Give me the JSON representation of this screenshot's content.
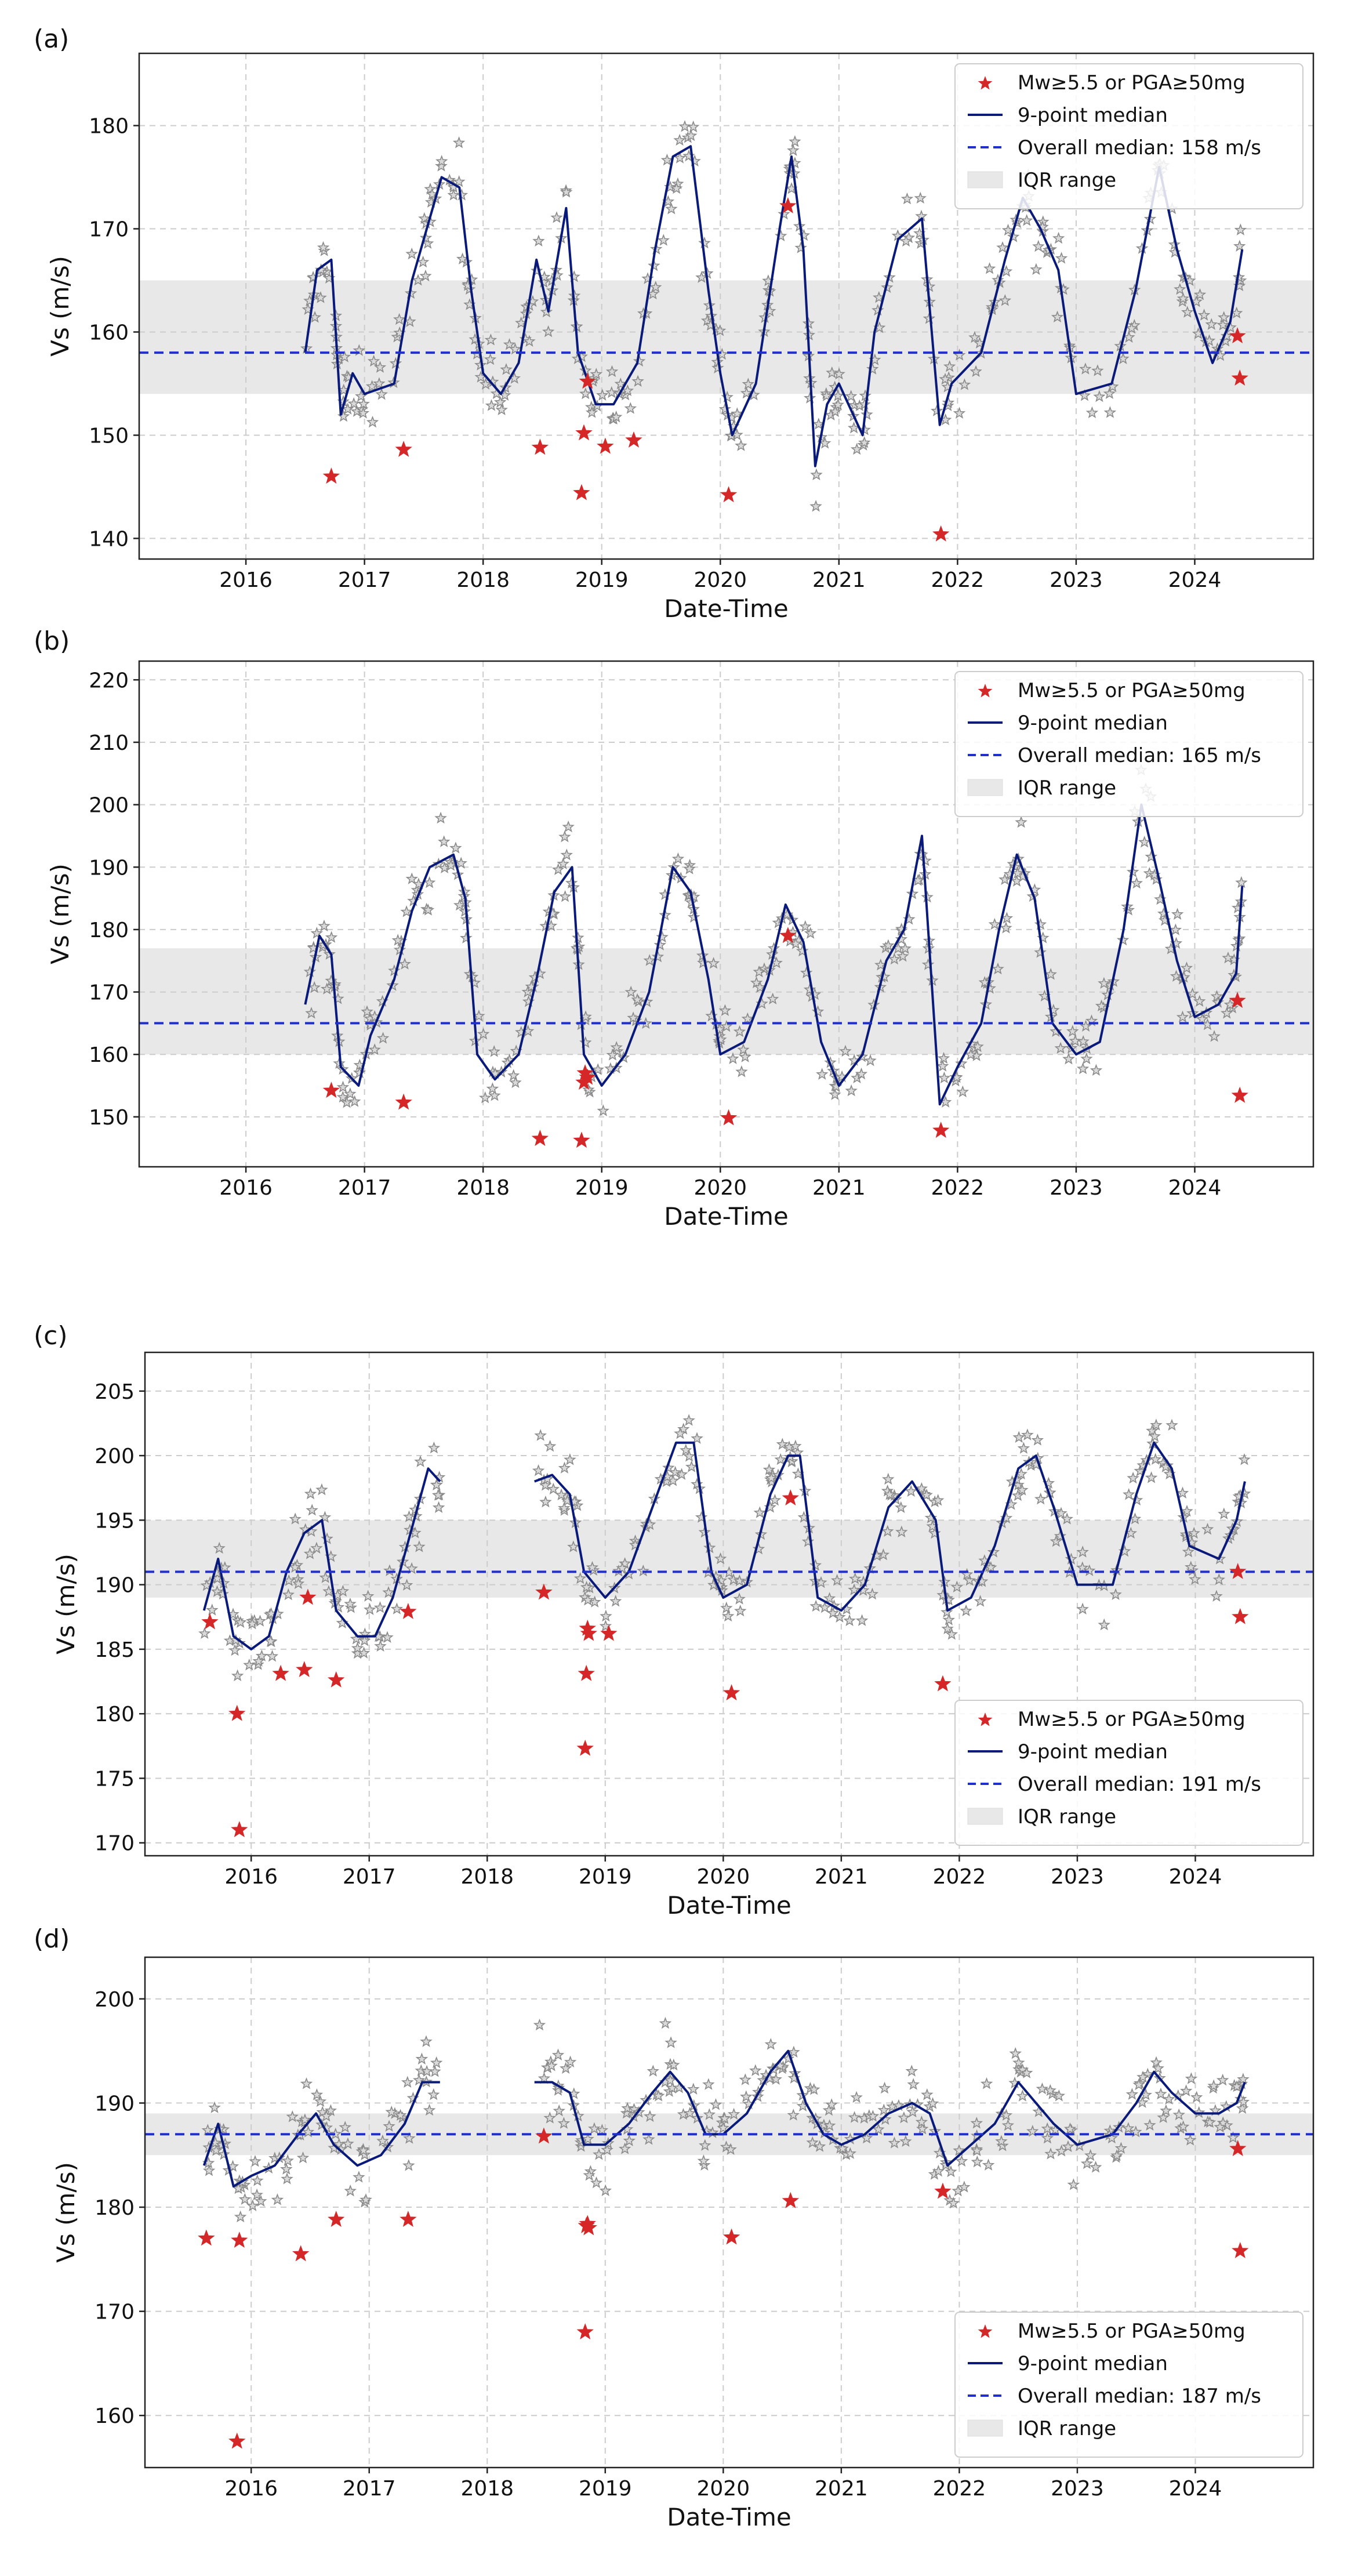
{
  "figure": {
    "description_note": "",
    "panels_count": 4
  },
  "chart_data": [
    {
      "panel_label": "(a)",
      "type": "scatter",
      "title": "",
      "xlabel": "Date-Time",
      "ylabel": "Vs (m/s)",
      "xlim": [
        2015.1,
        2025.0
      ],
      "ylim": [
        138,
        187
      ],
      "xticks": [
        2016,
        2017,
        2018,
        2019,
        2020,
        2021,
        2022,
        2023,
        2024
      ],
      "xtick_labels": [
        "2016",
        "2017",
        "2018",
        "2019",
        "2020",
        "2021",
        "2022",
        "2023",
        "2024"
      ],
      "yticks": [
        140,
        150,
        160,
        170,
        180
      ],
      "ytick_labels": [
        "140",
        "150",
        "160",
        "170",
        "180"
      ],
      "overall_median": 158,
      "iqr": [
        154,
        165
      ],
      "legend": {
        "position": "top-right",
        "entries": [
          "Mw≥5.5 or PGA≥50mg",
          "9-point median",
          "Overall median: 158 m/s",
          "IQR range"
        ]
      },
      "colors": {
        "event": "#d62728",
        "median": "#0a1a7a",
        "overall": "#1f2fd0",
        "iqr": "#e8e8e8",
        "obs": "#8a8a8a"
      },
      "median_series": [
        [
          2016.5,
          158
        ],
        [
          2016.6,
          166
        ],
        [
          2016.72,
          167
        ],
        [
          2016.8,
          152
        ],
        [
          2016.9,
          156
        ],
        [
          2017.0,
          154
        ],
        [
          2017.25,
          155
        ],
        [
          2017.4,
          165
        ],
        [
          2017.55,
          171
        ],
        [
          2017.65,
          175
        ],
        [
          2017.8,
          174
        ],
        [
          2017.9,
          164
        ],
        [
          2018.0,
          156
        ],
        [
          2018.15,
          154
        ],
        [
          2018.3,
          157
        ],
        [
          2018.45,
          167
        ],
        [
          2018.55,
          162
        ],
        [
          2018.7,
          172
        ],
        [
          2018.8,
          158
        ],
        [
          2018.95,
          153
        ],
        [
          2019.1,
          153
        ],
        [
          2019.3,
          157
        ],
        [
          2019.45,
          168
        ],
        [
          2019.6,
          177
        ],
        [
          2019.75,
          178
        ],
        [
          2019.9,
          164
        ],
        [
          2020.0,
          156
        ],
        [
          2020.1,
          150
        ],
        [
          2020.3,
          155
        ],
        [
          2020.5,
          170
        ],
        [
          2020.6,
          177
        ],
        [
          2020.7,
          168
        ],
        [
          2020.8,
          147
        ],
        [
          2020.9,
          153
        ],
        [
          2021.0,
          155
        ],
        [
          2021.2,
          150
        ],
        [
          2021.3,
          160
        ],
        [
          2021.5,
          169
        ],
        [
          2021.7,
          171
        ],
        [
          2021.85,
          151
        ],
        [
          2021.95,
          155
        ],
        [
          2022.2,
          158
        ],
        [
          2022.4,
          167
        ],
        [
          2022.55,
          173
        ],
        [
          2022.7,
          170
        ],
        [
          2022.85,
          166
        ],
        [
          2023.0,
          154
        ],
        [
          2023.3,
          155
        ],
        [
          2023.5,
          164
        ],
        [
          2023.7,
          176
        ],
        [
          2023.85,
          168
        ],
        [
          2024.0,
          162
        ],
        [
          2024.15,
          157
        ],
        [
          2024.3,
          161
        ],
        [
          2024.4,
          168
        ]
      ],
      "events": [
        [
          2016.72,
          146
        ],
        [
          2017.33,
          148.6
        ],
        [
          2018.48,
          148.8
        ],
        [
          2018.83,
          144.4
        ],
        [
          2018.85,
          150.2
        ],
        [
          2018.88,
          155.2
        ],
        [
          2019.03,
          148.9
        ],
        [
          2019.27,
          149.5
        ],
        [
          2020.07,
          144.2
        ],
        [
          2020.57,
          172.2
        ],
        [
          2021.86,
          140.4
        ],
        [
          2024.36,
          159.6
        ],
        [
          2024.38,
          155.5
        ]
      ]
    },
    {
      "panel_label": "(b)",
      "type": "scatter",
      "title": "",
      "xlabel": "Date-Time",
      "ylabel": "Vs (m/s)",
      "xlim": [
        2015.1,
        2025.0
      ],
      "ylim": [
        142,
        223
      ],
      "xticks": [
        2016,
        2017,
        2018,
        2019,
        2020,
        2021,
        2022,
        2023,
        2024
      ],
      "xtick_labels": [
        "2016",
        "2017",
        "2018",
        "2019",
        "2020",
        "2021",
        "2022",
        "2023",
        "2024"
      ],
      "yticks": [
        150,
        160,
        170,
        180,
        190,
        200,
        210,
        220
      ],
      "ytick_labels": [
        "150",
        "160",
        "170",
        "180",
        "190",
        "200",
        "210",
        "220"
      ],
      "overall_median": 165,
      "iqr": [
        160,
        177
      ],
      "legend": {
        "position": "top-right",
        "entries": [
          "Mw≥5.5 or PGA≥50mg",
          "9-point median",
          "Overall median: 165 m/s",
          "IQR range"
        ]
      },
      "colors": {
        "event": "#d62728",
        "median": "#0a1a7a",
        "overall": "#1f2fd0",
        "iqr": "#e8e8e8",
        "obs": "#8a8a8a"
      },
      "median_series": [
        [
          2016.5,
          168
        ],
        [
          2016.62,
          179
        ],
        [
          2016.72,
          176
        ],
        [
          2016.8,
          158
        ],
        [
          2016.95,
          155
        ],
        [
          2017.05,
          163
        ],
        [
          2017.25,
          172
        ],
        [
          2017.4,
          183
        ],
        [
          2017.55,
          190
        ],
        [
          2017.75,
          192
        ],
        [
          2017.85,
          185
        ],
        [
          2017.95,
          160
        ],
        [
          2018.1,
          156
        ],
        [
          2018.3,
          160
        ],
        [
          2018.45,
          172
        ],
        [
          2018.6,
          186
        ],
        [
          2018.75,
          190
        ],
        [
          2018.85,
          160
        ],
        [
          2019.0,
          155
        ],
        [
          2019.2,
          160
        ],
        [
          2019.4,
          170
        ],
        [
          2019.6,
          190
        ],
        [
          2019.75,
          186
        ],
        [
          2019.9,
          172
        ],
        [
          2020.0,
          160
        ],
        [
          2020.2,
          162
        ],
        [
          2020.4,
          172
        ],
        [
          2020.55,
          184
        ],
        [
          2020.7,
          178
        ],
        [
          2020.85,
          162
        ],
        [
          2021.0,
          155
        ],
        [
          2021.2,
          160
        ],
        [
          2021.4,
          175
        ],
        [
          2021.55,
          180
        ],
        [
          2021.7,
          195
        ],
        [
          2021.85,
          152
        ],
        [
          2022.0,
          158
        ],
        [
          2022.2,
          165
        ],
        [
          2022.35,
          180
        ],
        [
          2022.5,
          192
        ],
        [
          2022.65,
          185
        ],
        [
          2022.8,
          165
        ],
        [
          2023.0,
          160
        ],
        [
          2023.2,
          162
        ],
        [
          2023.4,
          180
        ],
        [
          2023.55,
          200
        ],
        [
          2023.7,
          188
        ],
        [
          2023.85,
          175
        ],
        [
          2024.0,
          166
        ],
        [
          2024.2,
          168
        ],
        [
          2024.35,
          173
        ],
        [
          2024.4,
          187
        ]
      ],
      "events": [
        [
          2016.72,
          154.2
        ],
        [
          2017.33,
          152.3
        ],
        [
          2018.48,
          146.5
        ],
        [
          2018.83,
          146.2
        ],
        [
          2018.85,
          155.5
        ],
        [
          2018.86,
          157.0
        ],
        [
          2018.88,
          156.3
        ],
        [
          2020.07,
          149.8
        ],
        [
          2020.57,
          179.0
        ],
        [
          2021.86,
          147.8
        ],
        [
          2024.36,
          168.6
        ],
        [
          2024.38,
          153.4
        ]
      ]
    },
    {
      "panel_label": "(c)",
      "type": "scatter",
      "title": "",
      "xlabel": "Date-Time",
      "ylabel": "Vs (m/s)",
      "xlim": [
        2015.1,
        2025.0
      ],
      "ylim": [
        169,
        208
      ],
      "xticks": [
        2016,
        2017,
        2018,
        2019,
        2020,
        2021,
        2022,
        2023,
        2024
      ],
      "xtick_labels": [
        "2016",
        "2017",
        "2018",
        "2019",
        "2020",
        "2021",
        "2022",
        "2023",
        "2024"
      ],
      "yticks": [
        170,
        175,
        180,
        185,
        190,
        195,
        200,
        205
      ],
      "ytick_labels": [
        "170",
        "175",
        "180",
        "185",
        "190",
        "195",
        "200",
        "205"
      ],
      "overall_median": 191,
      "iqr": [
        189,
        195
      ],
      "legend": {
        "position": "bottom-right",
        "entries": [
          "Mw≥5.5 or PGA≥50mg",
          "9-point median",
          "Overall median: 191 m/s",
          "IQR range"
        ]
      },
      "colors": {
        "event": "#d62728",
        "median": "#0a1a7a",
        "overall": "#1f2fd0",
        "iqr": "#e8e8e8",
        "obs": "#8a8a8a"
      },
      "median_series": [
        [
          2015.6,
          188
        ],
        [
          2015.72,
          192
        ],
        [
          2015.85,
          186
        ],
        [
          2016.0,
          185
        ],
        [
          2016.15,
          186
        ],
        [
          2016.3,
          191
        ],
        [
          2016.45,
          194
        ],
        [
          2016.6,
          195
        ],
        [
          2016.72,
          188
        ],
        [
          2016.9,
          186
        ],
        [
          2017.05,
          186
        ],
        [
          2017.2,
          189
        ],
        [
          2017.35,
          194
        ],
        [
          2017.5,
          199
        ],
        [
          2017.6,
          198
        ],
        [
          2018.4,
          198
        ],
        [
          2018.55,
          198.5
        ],
        [
          2018.7,
          197
        ],
        [
          2018.82,
          191
        ],
        [
          2019.0,
          189
        ],
        [
          2019.2,
          191
        ],
        [
          2019.4,
          196
        ],
        [
          2019.6,
          201
        ],
        [
          2019.75,
          201
        ],
        [
          2019.9,
          191
        ],
        [
          2020.0,
          189
        ],
        [
          2020.2,
          190
        ],
        [
          2020.4,
          197
        ],
        [
          2020.55,
          200
        ],
        [
          2020.65,
          200
        ],
        [
          2020.8,
          189
        ],
        [
          2021.0,
          188
        ],
        [
          2021.2,
          190
        ],
        [
          2021.4,
          196
        ],
        [
          2021.6,
          198
        ],
        [
          2021.8,
          195
        ],
        [
          2021.9,
          188
        ],
        [
          2022.1,
          189
        ],
        [
          2022.3,
          193
        ],
        [
          2022.5,
          199
        ],
        [
          2022.65,
          200
        ],
        [
          2022.8,
          196
        ],
        [
          2023.0,
          190
        ],
        [
          2023.3,
          190
        ],
        [
          2023.5,
          197
        ],
        [
          2023.65,
          201
        ],
        [
          2023.8,
          199
        ],
        [
          2023.95,
          193
        ],
        [
          2024.2,
          192
        ],
        [
          2024.35,
          195
        ],
        [
          2024.42,
          198
        ]
      ],
      "events": [
        [
          2015.65,
          187.1
        ],
        [
          2015.88,
          180.0
        ],
        [
          2015.9,
          171.0
        ],
        [
          2016.25,
          183.1
        ],
        [
          2016.45,
          183.4
        ],
        [
          2016.48,
          189.0
        ],
        [
          2016.72,
          182.6
        ],
        [
          2017.33,
          187.9
        ],
        [
          2018.48,
          189.4
        ],
        [
          2018.83,
          177.3
        ],
        [
          2018.84,
          183.1
        ],
        [
          2018.85,
          186.6
        ],
        [
          2018.86,
          186.2
        ],
        [
          2019.03,
          186.2
        ],
        [
          2020.07,
          181.6
        ],
        [
          2020.57,
          196.7
        ],
        [
          2021.86,
          182.3
        ],
        [
          2024.36,
          191.0
        ],
        [
          2024.38,
          187.5
        ]
      ]
    },
    {
      "panel_label": "(d)",
      "type": "scatter",
      "title": "",
      "xlabel": "Date-Time",
      "ylabel": "Vs (m/s)",
      "xlim": [
        2015.1,
        2025.0
      ],
      "ylim": [
        155,
        204
      ],
      "xticks": [
        2016,
        2017,
        2018,
        2019,
        2020,
        2021,
        2022,
        2023,
        2024
      ],
      "xtick_labels": [
        "2016",
        "2017",
        "2018",
        "2019",
        "2020",
        "2021",
        "2022",
        "2023",
        "2024"
      ],
      "yticks": [
        160,
        170,
        180,
        190,
        200
      ],
      "ytick_labels": [
        "160",
        "170",
        "180",
        "190",
        "200"
      ],
      "overall_median": 187,
      "iqr": [
        185,
        189
      ],
      "legend": {
        "position": "bottom-right",
        "entries": [
          "Mw≥5.5 or PGA≥50mg",
          "9-point median",
          "Overall median: 187 m/s",
          "IQR range"
        ]
      },
      "colors": {
        "event": "#d62728",
        "median": "#0a1a7a",
        "overall": "#1f2fd0",
        "iqr": "#e8e8e8",
        "obs": "#8a8a8a"
      },
      "median_series": [
        [
          2015.6,
          184
        ],
        [
          2015.72,
          188
        ],
        [
          2015.85,
          182
        ],
        [
          2016.0,
          183
        ],
        [
          2016.2,
          184
        ],
        [
          2016.4,
          187
        ],
        [
          2016.55,
          189
        ],
        [
          2016.7,
          186
        ],
        [
          2016.9,
          184
        ],
        [
          2017.1,
          185
        ],
        [
          2017.3,
          188
        ],
        [
          2017.45,
          192
        ],
        [
          2017.6,
          192
        ],
        [
          2018.4,
          192
        ],
        [
          2018.55,
          192
        ],
        [
          2018.7,
          191
        ],
        [
          2018.82,
          186
        ],
        [
          2019.0,
          186
        ],
        [
          2019.2,
          188
        ],
        [
          2019.4,
          191
        ],
        [
          2019.55,
          193
        ],
        [
          2019.7,
          191
        ],
        [
          2019.85,
          187
        ],
        [
          2020.0,
          187
        ],
        [
          2020.2,
          189
        ],
        [
          2020.4,
          193
        ],
        [
          2020.55,
          195
        ],
        [
          2020.7,
          190
        ],
        [
          2020.85,
          187
        ],
        [
          2021.0,
          186
        ],
        [
          2021.2,
          187
        ],
        [
          2021.4,
          189
        ],
        [
          2021.6,
          190
        ],
        [
          2021.75,
          189
        ],
        [
          2021.9,
          184
        ],
        [
          2022.1,
          186
        ],
        [
          2022.3,
          188
        ],
        [
          2022.5,
          192
        ],
        [
          2022.65,
          190
        ],
        [
          2022.8,
          188
        ],
        [
          2023.0,
          186
        ],
        [
          2023.3,
          187
        ],
        [
          2023.5,
          190
        ],
        [
          2023.65,
          193
        ],
        [
          2023.8,
          191
        ],
        [
          2024.0,
          189
        ],
        [
          2024.2,
          189
        ],
        [
          2024.35,
          190
        ],
        [
          2024.42,
          192
        ]
      ],
      "events": [
        [
          2015.62,
          177.0
        ],
        [
          2015.88,
          157.5
        ],
        [
          2015.9,
          176.8
        ],
        [
          2016.42,
          175.5
        ],
        [
          2016.72,
          178.8
        ],
        [
          2017.33,
          178.8
        ],
        [
          2018.48,
          186.8
        ],
        [
          2018.83,
          168.0
        ],
        [
          2018.84,
          178.2
        ],
        [
          2018.85,
          178.4
        ],
        [
          2018.86,
          178.0
        ],
        [
          2020.07,
          177.1
        ],
        [
          2020.57,
          180.6
        ],
        [
          2021.86,
          181.5
        ],
        [
          2024.36,
          185.6
        ],
        [
          2024.38,
          175.8
        ]
      ]
    }
  ]
}
